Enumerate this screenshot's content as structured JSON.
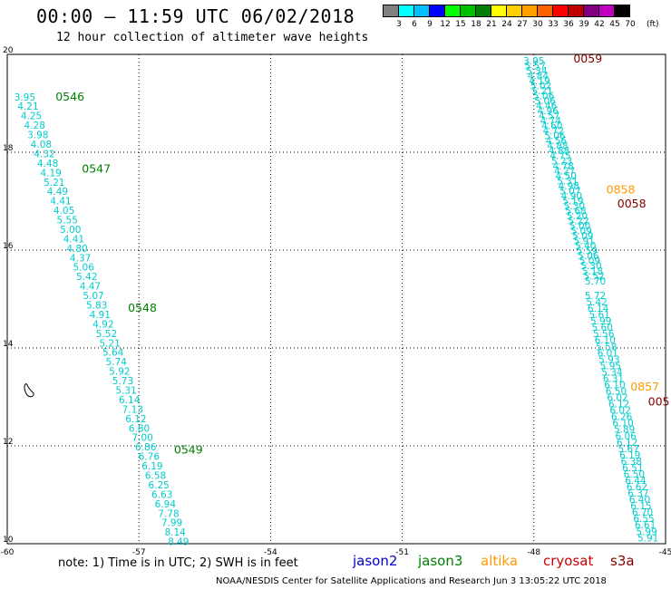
{
  "title": "00:00 – 11:59 UTC 06/02/2018",
  "subtitle": "12 hour collection of altimeter wave heights",
  "legend": {
    "values": [
      "3",
      "6",
      "9",
      "12",
      "15",
      "18",
      "21",
      "24",
      "27",
      "30",
      "33",
      "36",
      "39",
      "42",
      "45",
      "70"
    ],
    "colors": [
      "#808080",
      "#00ffff",
      "#00c0ff",
      "#0000ff",
      "#00ff00",
      "#00c000",
      "#008000",
      "#ffff00",
      "#ffd000",
      "#ffa000",
      "#ff6000",
      "#ff0000",
      "#c00000",
      "#800080",
      "#c000c0",
      "#000000"
    ],
    "unit": "(ft)"
  },
  "axes": {
    "x_labels": [
      "-60",
      "-57",
      "-54",
      "-51",
      "-48",
      "-45"
    ],
    "y_labels": [
      "20",
      "18",
      "16",
      "14",
      "12",
      "10"
    ]
  },
  "colors": {
    "jason2": "#0000cc",
    "jason3": "#008000",
    "altika": "#ff9900",
    "cryosat": "#cc0000",
    "s3a": "#800000",
    "swh": "#00cccc"
  },
  "footer": {
    "note": "note: 1) Time is in UTC; 2) SWH is in feet",
    "satellites": [
      "jason2",
      "jason3",
      "altika",
      "cryosat",
      "s3a"
    ],
    "credit": "NOAA/NESDIS Center for Satellite Applications and Research   Jun  3 13:05:22 UTC 2018"
  },
  "tracks": [
    {
      "name": "jason3-west",
      "color": "#00cccc",
      "start": [
        -59.6,
        19.06
      ],
      "end": [
        -56.1,
        9.97
      ],
      "values": [
        "3.95",
        "4.21",
        "4.25",
        "4.28",
        "3.98",
        "4.08",
        "4.32",
        "4.48",
        "4.19",
        "5.21",
        "4.49",
        "4.41",
        "4.05",
        "5.55",
        "5.00",
        "4.41",
        "4.80",
        "4.37",
        "5.06",
        "5.42",
        "4.47",
        "5.07",
        "5.83",
        "4.91",
        "4.92",
        "5.52",
        "5.21",
        "5.64",
        "5.74",
        "5.92",
        "5.73",
        "5.31",
        "6.14",
        "7.13",
        "6.12",
        "6.80",
        "7.00",
        "6.86",
        "6.76",
        "6.19",
        "6.58",
        "6.25",
        "6.63",
        "6.94",
        "7.78",
        "7.99",
        "8.14",
        "8.49"
      ],
      "times": [
        {
          "label": "0546",
          "lon": -58.9,
          "lat": 19.06,
          "color": "#008000"
        },
        {
          "label": "0547",
          "lon": -58.3,
          "lat": 17.58,
          "color": "#008000"
        },
        {
          "label": "0548",
          "lon": -57.25,
          "lat": 14.74,
          "color": "#008000"
        },
        {
          "label": "0549",
          "lon": -56.2,
          "lat": 11.84,
          "color": "#008000"
        }
      ]
    },
    {
      "name": "s3a-east-a",
      "color": "#00cccc",
      "start": [
        -48.0,
        19.8
      ],
      "end": [
        -46.6,
        15.3
      ],
      "values": [
        "3.95",
        "5.57",
        "5.34",
        "4.84",
        "4.19",
        "5.02",
        "5.21",
        "5.06",
        "5.06",
        "4.46",
        "4.96",
        "4.57",
        "4.74",
        "4.60",
        "4.72",
        "5.06",
        "4.56",
        "4.88",
        "4.88",
        "4.75",
        "5.23",
        "4.78",
        "4.27",
        "4.50",
        "5.31",
        "4.98",
        "5.07",
        "4.90",
        "5.19",
        "5.30",
        "5.68",
        "5.20",
        "5.22",
        "5.00",
        "5.09",
        "5.09",
        "5.91",
        "5.40",
        "5.59",
        "5.06",
        "5.09",
        "5.30",
        "5.18",
        "5.52",
        "5.70"
      ]
    },
    {
      "name": "s3a-east-b",
      "color": "#00cccc",
      "start": [
        -46.6,
        15.0
      ],
      "end": [
        -45.4,
        10.05
      ],
      "values": [
        "5.72",
        "5.42",
        "6.14",
        "5.61",
        "5.99",
        "5.60",
        "5.56",
        "6.10",
        "5.58",
        "6.01",
        "5.93",
        "5.95",
        "5.34",
        "6.31",
        "6.10",
        "6.50",
        "6.02",
        "6.12",
        "6.02",
        "6.26",
        "6.10",
        "5.89",
        "6.06",
        "6.12",
        "5.67",
        "6.19",
        "6.38",
        "6.51",
        "6.50",
        "6.44",
        "6.62",
        "6.37",
        "6.40",
        "6.15",
        "6.70",
        "6.55",
        "6.61",
        "5.99",
        "5.91"
      ],
      "times": [
        {
          "label": "0059",
          "lon": -47.1,
          "lat": 19.83,
          "color": "#800000"
        },
        {
          "label": "0858",
          "lon": -46.35,
          "lat": 17.16,
          "color": "#ff9900"
        },
        {
          "label": "0058",
          "lon": -46.1,
          "lat": 16.87,
          "color": "#800000"
        },
        {
          "label": "0857",
          "lon": -45.8,
          "lat": 13.13,
          "color": "#ff9900"
        },
        {
          "label": "005",
          "lon": -45.4,
          "lat": 12.82,
          "color": "#800000"
        }
      ]
    }
  ]
}
